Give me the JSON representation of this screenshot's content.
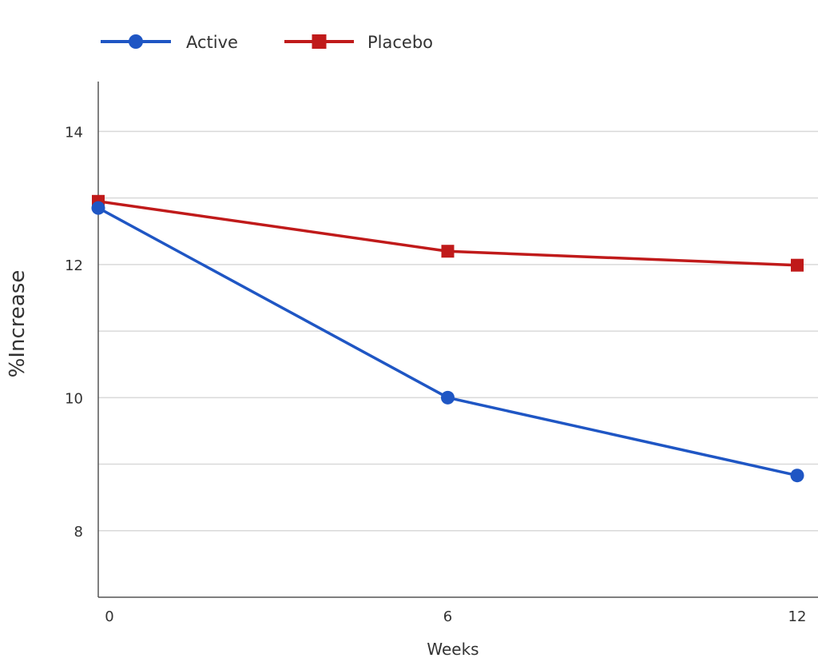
{
  "chart_data": {
    "type": "line",
    "title": "",
    "xlabel": "Weeks",
    "ylabel": "%Increase",
    "x": [
      0,
      6,
      12
    ],
    "x_ticks": [
      "0",
      "6",
      "12"
    ],
    "y_ticks": [
      "8",
      "10",
      "12",
      "14"
    ],
    "ylim": [
      7,
      14.75
    ],
    "grid": true,
    "legend_position": "top-left",
    "series": [
      {
        "name": "Active",
        "color": "#1f56c4",
        "marker": "circle",
        "values": [
          12.85,
          10.0,
          8.83
        ]
      },
      {
        "name": "Placebo",
        "color": "#c01a1a",
        "marker": "square",
        "values": [
          12.95,
          12.2,
          11.99
        ]
      }
    ]
  }
}
